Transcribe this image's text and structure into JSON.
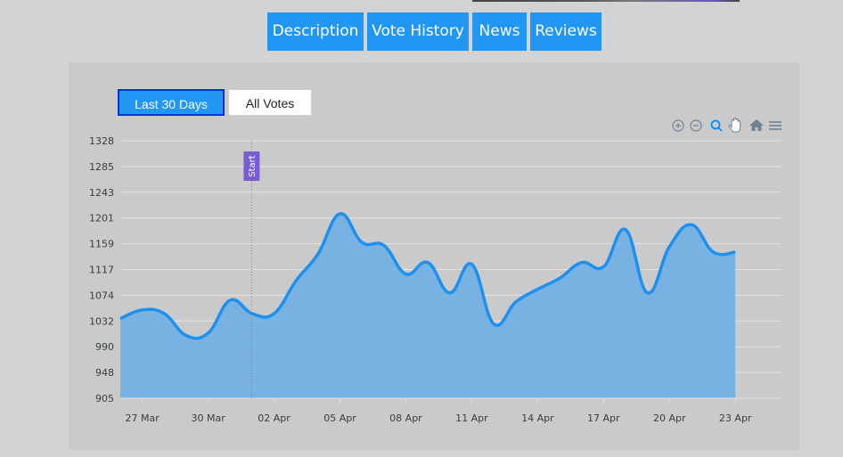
{
  "tabs": [
    "Description",
    "Vote History",
    "News",
    "Reviews"
  ],
  "range_buttons": {
    "active": "Last 30 Days",
    "other": "All Votes"
  },
  "toolbar": [
    "zoom-in-icon",
    "zoom-out-icon",
    "selection-zoom-icon",
    "pan-hand-icon",
    "reset-home-icon",
    "menu-icon"
  ],
  "colors": {
    "accent": "#2196f3",
    "line": "#1e90f0",
    "fill": "#6aaee8",
    "annotation": "#775dd0"
  },
  "chart_data": {
    "type": "area",
    "title": "",
    "xlabel": "",
    "ylabel": "",
    "ylim": [
      905,
      1328
    ],
    "y_ticks": [
      "1328",
      "1285",
      "1243",
      "1201",
      "1159",
      "1117",
      "1074",
      "1032",
      "990",
      "948",
      "905"
    ],
    "x_tick_labels": [
      "27 Mar",
      "30 Mar",
      "02 Apr",
      "05 Apr",
      "08 Apr",
      "11 Apr",
      "14 Apr",
      "17 Apr",
      "20 Apr",
      "23 Apr"
    ],
    "grid": true,
    "annotation": {
      "label": "Start",
      "x": "01 Apr"
    },
    "x": [
      "26 Mar",
      "27 Mar",
      "28 Mar",
      "29 Mar",
      "30 Mar",
      "31 Mar",
      "01 Apr",
      "02 Apr",
      "03 Apr",
      "04 Apr",
      "05 Apr",
      "06 Apr",
      "07 Apr",
      "08 Apr",
      "09 Apr",
      "10 Apr",
      "11 Apr",
      "12 Apr",
      "13 Apr",
      "14 Apr",
      "15 Apr",
      "16 Apr",
      "17 Apr",
      "18 Apr",
      "19 Apr",
      "20 Apr",
      "21 Apr",
      "22 Apr",
      "23 Apr"
    ],
    "values": [
      1036,
      1050,
      1044,
      1008,
      1012,
      1066,
      1044,
      1044,
      1098,
      1142,
      1208,
      1161,
      1156,
      1109,
      1128,
      1078,
      1125,
      1027,
      1063,
      1084,
      1102,
      1128,
      1121,
      1182,
      1078,
      1154,
      1190,
      1145,
      1145
    ]
  }
}
